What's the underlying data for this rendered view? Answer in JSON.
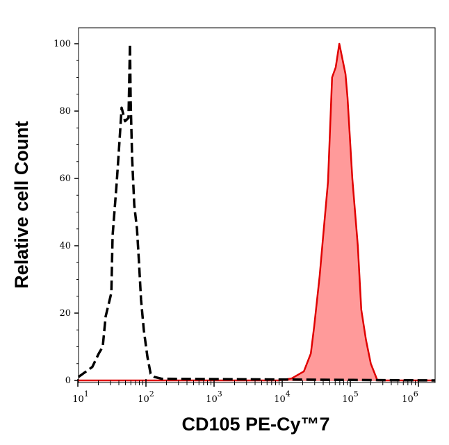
{
  "chart_data": {
    "type": "area",
    "title": "",
    "xlabel": "CD105 PE-Cy™7",
    "ylabel": "Relative cell Count",
    "xscale": "log",
    "xlim": [
      10,
      1740000
    ],
    "ylim": [
      0,
      105
    ],
    "x_ticks": [
      {
        "base": "10",
        "exp": "1"
      },
      {
        "base": "10",
        "exp": "2"
      },
      {
        "base": "10",
        "exp": "3"
      },
      {
        "base": "10",
        "exp": "4"
      },
      {
        "base": "10",
        "exp": "5"
      },
      {
        "base": "10",
        "exp": "6"
      }
    ],
    "y_ticks": [
      "0",
      "20",
      "40",
      "60",
      "80",
      "100"
    ],
    "grid": false,
    "legend": "none",
    "series": [
      {
        "style": "dashed",
        "color": "#000000",
        "fill": "none",
        "x": [
          10.2,
          16.3,
          20.3,
          23.2,
          25.6,
          31,
          32.4,
          37.3,
          40.9,
          43.9,
          49.3,
          55.5,
          58.2,
          59.7,
          62.6,
          67.4,
          73.8,
          79.1,
          84.7,
          93,
          105,
          117,
          134,
          170,
          1740000
        ],
        "y": [
          1,
          4,
          8,
          10,
          19,
          26,
          43,
          59,
          71,
          81,
          77,
          78,
          100,
          83,
          66,
          52,
          45,
          35,
          24,
          15,
          7,
          2,
          1,
          0.5,
          0
        ]
      },
      {
        "style": "solid",
        "color": "#e00000",
        "fill": "#ff9a9a",
        "x": [
          10,
          8700,
          13800,
          20800,
          26300,
          29500,
          35500,
          40000,
          47000,
          54000,
          61000,
          69000,
          85000,
          91000,
          107000,
          129000,
          145000,
          170000,
          200000,
          250000,
          1740000
        ],
        "y": [
          0,
          0,
          0.6,
          2.7,
          8,
          16,
          31,
          43,
          59,
          90,
          93,
          100,
          91,
          84,
          60,
          40,
          21,
          12,
          5,
          0,
          0
        ]
      }
    ]
  }
}
